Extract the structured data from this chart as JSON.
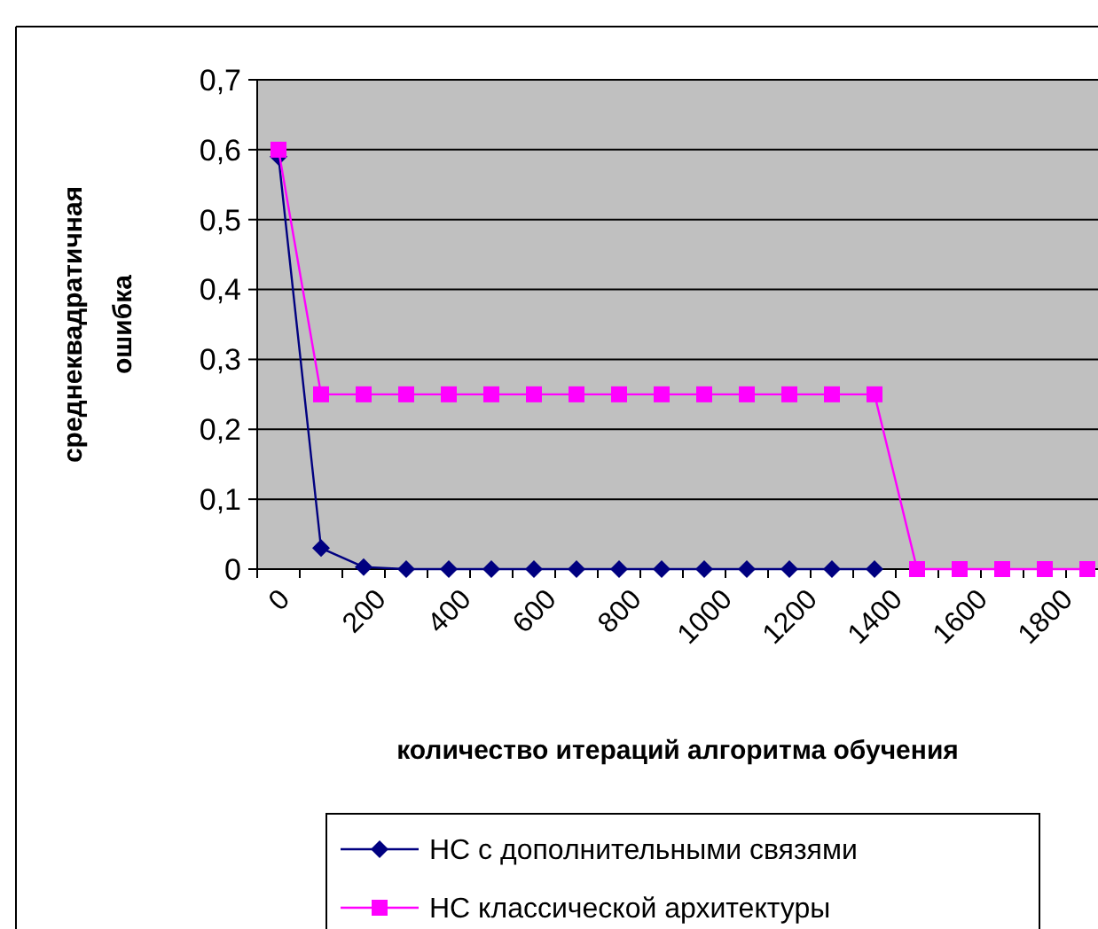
{
  "chart_data": {
    "type": "line",
    "xlabel": "количество итераций алгоритма обучения",
    "ylabel": "среднеквадратичная\nошибка",
    "categories": [
      "0",
      null,
      "200",
      null,
      "400",
      null,
      "600",
      null,
      "800",
      null,
      "1000",
      null,
      "1200",
      null,
      "1400",
      null,
      "1600",
      null,
      "1800",
      null
    ],
    "series": [
      {
        "name": "НС с дополнительными связями",
        "color": "#000080",
        "marker": "diamond",
        "values": [
          0.59,
          0.03,
          0.003,
          0,
          0,
          0,
          0,
          0,
          0,
          0,
          0,
          0,
          0,
          0,
          0,
          null,
          null,
          null,
          null,
          null
        ]
      },
      {
        "name": "НС классической архитектуры",
        "color": "#ff00ff",
        "marker": "square",
        "values": [
          0.6,
          0.25,
          0.25,
          0.25,
          0.25,
          0.25,
          0.25,
          0.25,
          0.25,
          0.25,
          0.25,
          0.25,
          0.25,
          0.25,
          0.25,
          0,
          0,
          0,
          0,
          0
        ]
      }
    ],
    "ylim": [
      0,
      0.7
    ],
    "yticks": [
      {
        "value": 0,
        "label": "0"
      },
      {
        "value": 0.1,
        "label": "0,1"
      },
      {
        "value": 0.2,
        "label": "0,2"
      },
      {
        "value": 0.3,
        "label": "0,3"
      },
      {
        "value": 0.4,
        "label": "0,4"
      },
      {
        "value": 0.5,
        "label": "0,5"
      },
      {
        "value": 0.6,
        "label": "0,6"
      },
      {
        "value": 0.7,
        "label": "0,7"
      }
    ],
    "grid": "y",
    "legend": "bottom",
    "line_style": "solid"
  }
}
